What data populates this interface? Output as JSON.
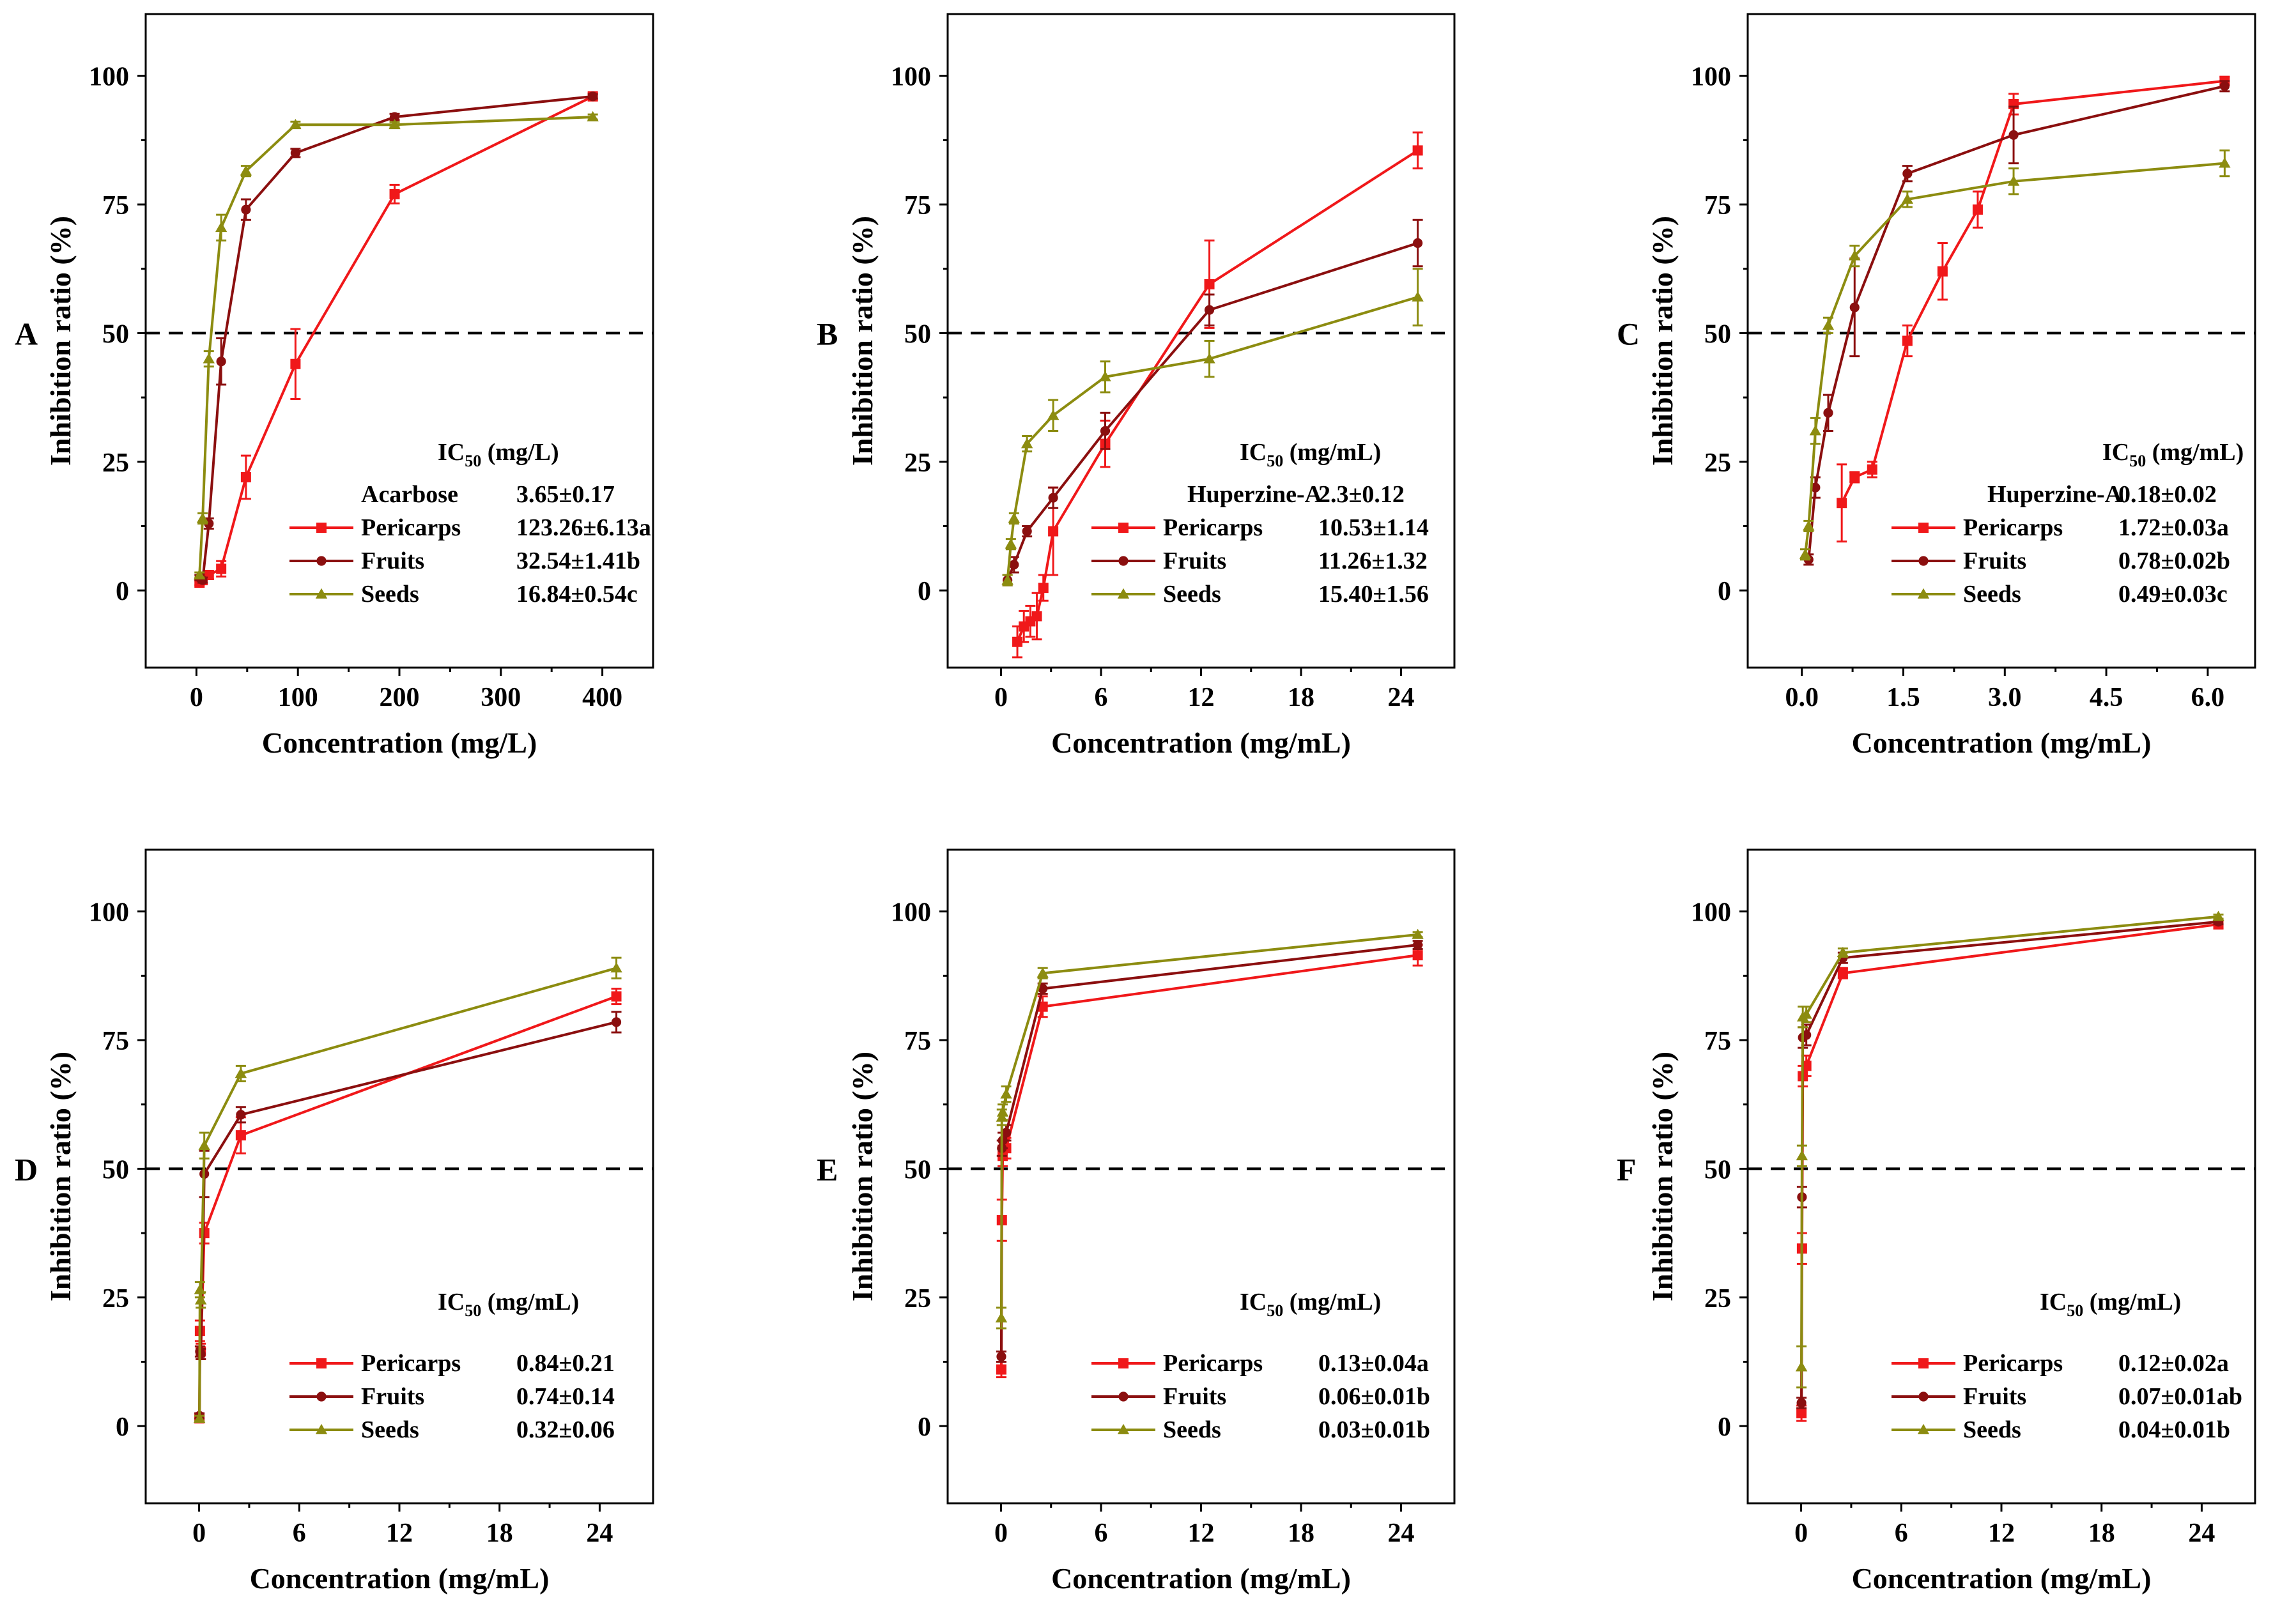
{
  "colors": {
    "pericarps": "#f0181a",
    "fruits": "#8b0f0f",
    "seeds": "#8c8c10",
    "axis": "#000000",
    "reference_line": "#000000"
  },
  "chart_data": [
    {
      "panel": "A",
      "type": "line",
      "xlabel": "Concentration (mg/L)",
      "ylabel": "Inhibition ratio (%)",
      "xlim": [
        -50,
        450
      ],
      "ylim": [
        -15,
        112
      ],
      "xticks": [
        0,
        100,
        200,
        300,
        400
      ],
      "xtick_labels": [
        "0",
        "100",
        "200",
        "300",
        "400"
      ],
      "yticks": [
        0,
        25,
        50,
        75,
        100
      ],
      "ytick_labels": [
        "0",
        "25",
        "50",
        "75",
        "100"
      ],
      "reference_y": 50,
      "ic50_header": {
        "main": "IC",
        "sub": "50",
        "unit": " (mg/L)"
      },
      "legend_rows": [
        {
          "series": null,
          "label": "Acarbose",
          "value": "3.65±0.17"
        },
        {
          "series": "pericarps",
          "label": "Pericarps",
          "value": "123.26±6.13a"
        },
        {
          "series": "fruits",
          "label": "Fruits",
          "value": "32.54±1.41b"
        },
        {
          "series": "seeds",
          "label": "Seeds",
          "value": "16.84±0.54c"
        }
      ],
      "series": [
        {
          "name": "Pericarps",
          "key": "pericarps",
          "marker": "square",
          "x": [
            3.05,
            6.1,
            12.2,
            24.4,
            48.8,
            97.6,
            195.3,
            390.6
          ],
          "y": [
            1.5,
            2.0,
            3.0,
            4.2,
            22.0,
            44.0,
            77.0,
            96.0
          ],
          "err": [
            0.5,
            0.6,
            0.8,
            1.5,
            4.2,
            6.8,
            1.8,
            0.6
          ]
        },
        {
          "name": "Fruits",
          "key": "fruits",
          "marker": "circle",
          "x": [
            3.05,
            6.1,
            12.2,
            24.4,
            48.8,
            97.6,
            195.3,
            390.6
          ],
          "y": [
            2.5,
            2.0,
            13.0,
            44.5,
            74.0,
            85.0,
            92.0,
            96.0
          ],
          "err": [
            0.5,
            0.5,
            1.0,
            4.5,
            2.0,
            0.8,
            0.6,
            0.4
          ]
        },
        {
          "name": "Seeds",
          "key": "seeds",
          "marker": "triangle",
          "x": [
            3.05,
            6.1,
            12.2,
            24.4,
            48.8,
            97.6,
            195.3,
            390.6
          ],
          "y": [
            3.0,
            14.0,
            45.0,
            70.5,
            81.5,
            90.5,
            90.5,
            92.0
          ],
          "err": [
            0.5,
            1.0,
            1.5,
            2.5,
            1.0,
            0.6,
            0.5,
            0.5
          ]
        }
      ]
    },
    {
      "panel": "B",
      "type": "line",
      "xlabel": "Concentration (mg/mL)",
      "ylabel": "Inhibition ratio (%)",
      "xlim": [
        -3.2,
        27.2
      ],
      "ylim": [
        -15,
        112
      ],
      "xticks": [
        0,
        6,
        12,
        18,
        24
      ],
      "xtick_labels": [
        "0",
        "6",
        "12",
        "18",
        "24"
      ],
      "yticks": [
        0,
        25,
        50,
        75,
        100
      ],
      "ytick_labels": [
        "0",
        "25",
        "50",
        "75",
        "100"
      ],
      "reference_y": 50,
      "ic50_header": {
        "main": "IC",
        "sub": "50",
        "unit": " (mg/mL)"
      },
      "legend_rows": [
        {
          "series": null,
          "label": "Huperzine-A",
          "value": "2.3±0.12"
        },
        {
          "series": "pericarps",
          "label": "Pericarps",
          "value": "10.53±1.14"
        },
        {
          "series": "fruits",
          "label": "Fruits",
          "value": "11.26±1.32"
        },
        {
          "series": "seeds",
          "label": "Seeds",
          "value": "15.40±1.56"
        }
      ],
      "series": [
        {
          "name": "Pericarps",
          "key": "pericarps",
          "marker": "square",
          "x": [
            0.98,
            1.37,
            1.76,
            2.15,
            2.54,
            3.13,
            6.25,
            12.5,
            25.0
          ],
          "y": [
            -10.0,
            -7.0,
            -6.0,
            -5.0,
            0.5,
            11.5,
            28.5,
            59.5,
            85.5
          ],
          "err": [
            3.0,
            3.0,
            3.0,
            4.5,
            2.5,
            8.5,
            4.5,
            8.5,
            3.5
          ]
        },
        {
          "name": "Fruits",
          "key": "fruits",
          "marker": "circle",
          "x": [
            0.39,
            0.78,
            1.56,
            3.13,
            6.25,
            12.5,
            25.0
          ],
          "y": [
            2.0,
            5.0,
            11.5,
            18.0,
            31.0,
            54.5,
            67.5
          ],
          "err": [
            1.0,
            1.5,
            1.0,
            2.0,
            3.5,
            3.0,
            4.5
          ]
        },
        {
          "name": "Seeds",
          "key": "seeds",
          "marker": "triangle",
          "x": [
            0.39,
            0.59,
            0.78,
            1.56,
            3.13,
            6.25,
            12.5,
            25.0
          ],
          "y": [
            2.0,
            9.0,
            14.0,
            28.5,
            34.0,
            41.5,
            45.0,
            57.0
          ],
          "err": [
            1.0,
            1.0,
            1.0,
            1.5,
            3.0,
            3.0,
            3.5,
            5.5
          ]
        }
      ]
    },
    {
      "panel": "C",
      "type": "line",
      "xlabel": "Concentration (mg/mL)",
      "ylabel": "Inhibition ratio (%)",
      "xlim": [
        -0.8,
        6.7
      ],
      "ylim": [
        -15,
        112
      ],
      "xticks": [
        0,
        1.5,
        3.0,
        4.5,
        6.0
      ],
      "xtick_labels": [
        "0.0",
        "1.5",
        "3.0",
        "4.5",
        "6.0"
      ],
      "yticks": [
        0,
        25,
        50,
        75,
        100
      ],
      "ytick_labels": [
        "0",
        "25",
        "50",
        "75",
        "100"
      ],
      "reference_y": 50,
      "ic50_header": {
        "main": "IC",
        "sub": "50",
        "unit": " (mg/mL)"
      },
      "legend_rows": [
        {
          "series": null,
          "label": "Huperzine-A",
          "value": "0.18±0.02"
        },
        {
          "series": "pericarps",
          "label": "Pericarps",
          "value": "1.72±0.03a"
        },
        {
          "series": "fruits",
          "label": "Fruits",
          "value": "0.78±0.02b"
        },
        {
          "series": "seeds",
          "label": "Seeds",
          "value": "0.49±0.03c"
        }
      ],
      "series": [
        {
          "name": "Pericarps",
          "key": "pericarps",
          "marker": "square",
          "x": [
            0.59,
            0.78,
            1.04,
            1.56,
            2.08,
            2.6,
            3.13,
            6.25
          ],
          "y": [
            17.0,
            22.0,
            23.5,
            48.5,
            62.0,
            74.0,
            94.5,
            99.0
          ],
          "err": [
            7.5,
            1.0,
            1.5,
            3.0,
            5.5,
            3.5,
            2.0,
            0.8
          ]
        },
        {
          "name": "Fruits",
          "key": "fruits",
          "marker": "circle",
          "x": [
            0.1,
            0.2,
            0.39,
            0.78,
            1.56,
            3.13,
            6.25
          ],
          "y": [
            6.0,
            20.0,
            34.5,
            55.0,
            81.0,
            88.5,
            98.0
          ],
          "err": [
            1.0,
            2.0,
            3.5,
            9.5,
            1.5,
            5.5,
            1.0
          ]
        },
        {
          "name": "Seeds",
          "key": "seeds",
          "marker": "triangle",
          "x": [
            0.05,
            0.1,
            0.2,
            0.39,
            0.78,
            1.56,
            3.13,
            6.25
          ],
          "y": [
            7.0,
            12.5,
            31.0,
            51.5,
            65.0,
            76.0,
            79.5,
            83.0
          ],
          "err": [
            1.0,
            1.0,
            2.5,
            1.5,
            2.0,
            1.5,
            2.5,
            2.5
          ]
        }
      ]
    },
    {
      "panel": "D",
      "type": "line",
      "xlabel": "Concentration (mg/mL)",
      "ylabel": "Inhibition ratio (%)",
      "xlim": [
        -3.2,
        27.2
      ],
      "ylim": [
        -15,
        112
      ],
      "xticks": [
        0,
        6,
        12,
        18,
        24
      ],
      "xtick_labels": [
        "0",
        "6",
        "12",
        "18",
        "24"
      ],
      "yticks": [
        0,
        25,
        50,
        75,
        100
      ],
      "ytick_labels": [
        "0",
        "25",
        "50",
        "75",
        "100"
      ],
      "reference_y": 50,
      "ic50_header": {
        "main": "IC",
        "sub": "50",
        "unit": " (mg/mL)"
      },
      "legend_rows": [
        {
          "series": "pericarps",
          "label": "Pericarps",
          "value": "0.84±0.21"
        },
        {
          "series": "fruits",
          "label": "Fruits",
          "value": "0.74±0.14"
        },
        {
          "series": "seeds",
          "label": "Seeds",
          "value": "0.32±0.06"
        }
      ],
      "series": [
        {
          "name": "Pericarps",
          "key": "pericarps",
          "marker": "square",
          "x": [
            0.02,
            0.05,
            0.1,
            0.31,
            2.5,
            25.0
          ],
          "y": [
            1.5,
            18.5,
            14.5,
            37.5,
            56.5,
            83.5
          ],
          "err": [
            0.5,
            2.0,
            1.5,
            2.0,
            3.5,
            1.5
          ]
        },
        {
          "name": "Fruits",
          "key": "fruits",
          "marker": "circle",
          "x": [
            0.02,
            0.05,
            0.1,
            0.31,
            2.5,
            25.0
          ],
          "y": [
            2.0,
            14.5,
            14.0,
            49.0,
            60.5,
            78.5
          ],
          "err": [
            0.5,
            1.0,
            1.0,
            4.5,
            1.5,
            2.0
          ]
        },
        {
          "name": "Seeds",
          "key": "seeds",
          "marker": "triangle",
          "x": [
            0.02,
            0.05,
            0.1,
            0.31,
            2.5,
            25.0
          ],
          "y": [
            1.5,
            26.5,
            24.5,
            54.5,
            68.5,
            89.0
          ],
          "err": [
            0.5,
            1.5,
            1.5,
            2.5,
            1.5,
            2.0
          ]
        }
      ]
    },
    {
      "panel": "E",
      "type": "line",
      "xlabel": "Concentration (mg/mL)",
      "ylabel": "Inhibition ratio (%)",
      "xlim": [
        -3.2,
        27.2
      ],
      "ylim": [
        -15,
        112
      ],
      "xticks": [
        0,
        6,
        12,
        18,
        24
      ],
      "xtick_labels": [
        "0",
        "6",
        "12",
        "18",
        "24"
      ],
      "yticks": [
        0,
        25,
        50,
        75,
        100
      ],
      "ytick_labels": [
        "0",
        "25",
        "50",
        "75",
        "100"
      ],
      "reference_y": 50,
      "ic50_header": {
        "main": "IC",
        "sub": "50",
        "unit": " (mg/mL)"
      },
      "legend_rows": [
        {
          "series": "pericarps",
          "label": "Pericarps",
          "value": "0.13±0.04a"
        },
        {
          "series": "fruits",
          "label": "Fruits",
          "value": "0.06±0.01b"
        },
        {
          "series": "seeds",
          "label": "Seeds",
          "value": "0.03±0.01b"
        }
      ],
      "series": [
        {
          "name": "Pericarps",
          "key": "pericarps",
          "marker": "square",
          "x": [
            0.02,
            0.05,
            0.1,
            0.31,
            2.5,
            25.0
          ],
          "y": [
            11.0,
            40.0,
            52.5,
            54.0,
            81.5,
            91.5
          ],
          "err": [
            1.5,
            4.0,
            2.0,
            2.0,
            2.0,
            2.0
          ]
        },
        {
          "name": "Fruits",
          "key": "fruits",
          "marker": "circle",
          "x": [
            0.02,
            0.05,
            0.1,
            0.31,
            2.5,
            25.0
          ],
          "y": [
            13.5,
            54.0,
            55.5,
            57.0,
            85.0,
            93.5
          ],
          "err": [
            1.0,
            1.5,
            1.5,
            1.5,
            1.0,
            0.8
          ]
        },
        {
          "name": "Seeds",
          "key": "seeds",
          "marker": "triangle",
          "x": [
            0.02,
            0.05,
            0.1,
            0.31,
            2.5,
            25.0
          ],
          "y": [
            21.0,
            60.0,
            61.0,
            64.5,
            88.0,
            95.5
          ],
          "err": [
            2.0,
            1.5,
            1.5,
            1.5,
            1.0,
            0.5
          ]
        }
      ]
    },
    {
      "panel": "F",
      "type": "line",
      "xlabel": "Concentration (mg/mL)",
      "ylabel": "Inhibition ratio (%)",
      "xlim": [
        -3.2,
        27.2
      ],
      "ylim": [
        -15,
        112
      ],
      "xticks": [
        0,
        6,
        12,
        18,
        24
      ],
      "xtick_labels": [
        "0",
        "6",
        "12",
        "18",
        "24"
      ],
      "yticks": [
        0,
        25,
        50,
        75,
        100
      ],
      "ytick_labels": [
        "0",
        "25",
        "50",
        "75",
        "100"
      ],
      "reference_y": 50,
      "ic50_header": {
        "main": "IC",
        "sub": "50",
        "unit": " (mg/mL)"
      },
      "legend_rows": [
        {
          "series": "pericarps",
          "label": "Pericarps",
          "value": "0.12±0.02a"
        },
        {
          "series": "fruits",
          "label": "Fruits",
          "value": "0.07±0.01ab"
        },
        {
          "series": "seeds",
          "label": "Seeds",
          "value": "0.04±0.01b"
        }
      ],
      "series": [
        {
          "name": "Pericarps",
          "key": "pericarps",
          "marker": "square",
          "x": [
            0.02,
            0.05,
            0.1,
            0.31,
            2.5,
            25.0
          ],
          "y": [
            2.5,
            34.5,
            68.0,
            70.0,
            88.0,
            97.5
          ],
          "err": [
            1.5,
            3.0,
            2.0,
            2.0,
            1.0,
            0.8
          ]
        },
        {
          "name": "Fruits",
          "key": "fruits",
          "marker": "circle",
          "x": [
            0.02,
            0.05,
            0.1,
            0.31,
            2.5,
            25.0
          ],
          "y": [
            4.5,
            44.5,
            75.5,
            76.0,
            91.0,
            98.0
          ],
          "err": [
            1.0,
            2.0,
            2.0,
            2.0,
            1.0,
            0.5
          ]
        },
        {
          "name": "Seeds",
          "key": "seeds",
          "marker": "triangle",
          "x": [
            0.02,
            0.05,
            0.1,
            0.31,
            2.5,
            25.0
          ],
          "y": [
            11.5,
            52.5,
            79.5,
            80.0,
            92.0,
            99.0
          ],
          "err": [
            4.0,
            2.0,
            2.0,
            1.5,
            0.8,
            0.4
          ]
        }
      ]
    }
  ]
}
